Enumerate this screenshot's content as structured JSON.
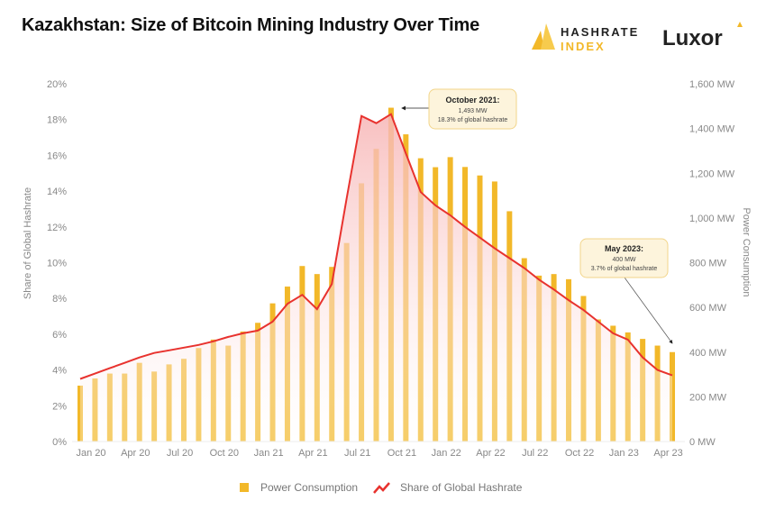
{
  "title": "Kazakhstan: Size of Bitcoin Mining Industry Over Time",
  "logos": {
    "hashrate_index_line1": "HASHRATE",
    "hashrate_index_line2": "INDEX",
    "luxor": "Luxor"
  },
  "colors": {
    "bars": "#F2B829",
    "line": "#E8322E",
    "area": "#F9C8C8",
    "annotation_bg": "#FDF4DC",
    "annotation_border": "#F2D58A"
  },
  "chart_data": {
    "type": "bar+line",
    "title": "Kazakhstan: Size of Bitcoin Mining Industry Over Time",
    "categories": [
      "Jan 20",
      "Feb 20",
      "Mar 20",
      "Apr 20",
      "May 20",
      "Jun 20",
      "Jul 20",
      "Aug 20",
      "Sep 20",
      "Oct 20",
      "Nov 20",
      "Dec 20",
      "Jan 21",
      "Feb 21",
      "Mar 21",
      "Apr 21",
      "May 21",
      "Jun 21",
      "Jul 21",
      "Aug 21",
      "Sep 21",
      "Oct 21",
      "Nov 21",
      "Dec 21",
      "Jan 22",
      "Feb 22",
      "Mar 22",
      "Apr 22",
      "May 22",
      "Jun 22",
      "Jul 22",
      "Aug 22",
      "Sep 22",
      "Oct 22",
      "Nov 22",
      "Dec 22",
      "Jan 23",
      "Feb 23",
      "Mar 23",
      "Apr 23",
      "May 23"
    ],
    "x_tick_labels": [
      "Jan 20",
      "Apr 20",
      "Jul 20",
      "Oct 20",
      "Jan 21",
      "Apr 21",
      "Jul 21",
      "Oct 21",
      "Jan 22",
      "Apr 22",
      "Jul 22",
      "Oct 22",
      "Jan 23",
      "Apr 23"
    ],
    "series": [
      {
        "name": "Power Consumption",
        "type": "bar",
        "axis": "right",
        "unit": "MW",
        "values": [
          250,
          282,
          304,
          304,
          352,
          313,
          345,
          370,
          418,
          456,
          429,
          492,
          531,
          618,
          693,
          785,
          749,
          781,
          888,
          1155,
          1309,
          1493,
          1374,
          1267,
          1227,
          1272,
          1228,
          1190,
          1163,
          1030,
          820,
          742,
          749,
          726,
          651,
          546,
          518,
          488,
          459,
          429,
          400
        ]
      },
      {
        "name": "Share of Global Hashrate",
        "type": "line",
        "axis": "left",
        "unit": "%",
        "values": [
          3.5,
          3.8,
          4.1,
          4.4,
          4.7,
          4.95,
          5.1,
          5.25,
          5.4,
          5.6,
          5.85,
          6.05,
          6.2,
          6.7,
          7.7,
          8.2,
          7.4,
          8.8,
          13.6,
          18.2,
          17.8,
          18.3,
          16.1,
          13.95,
          13.2,
          12.65,
          12.0,
          11.4,
          10.8,
          10.25,
          9.7,
          9.05,
          8.5,
          7.9,
          7.35,
          6.7,
          6.05,
          5.7,
          4.7,
          4.0,
          3.7
        ]
      }
    ],
    "left_axis": {
      "label": "Share of Global Hashrate",
      "ylim": [
        0,
        20
      ],
      "ticks": [
        "0%",
        "2%",
        "4%",
        "6%",
        "8%",
        "10%",
        "12%",
        "14%",
        "16%",
        "18%",
        "20%"
      ]
    },
    "right_axis": {
      "label": "Power Consumption",
      "ylim": [
        0,
        1600
      ],
      "ticks": [
        "0 MW",
        "200 MW",
        "400 MW",
        "600 MW",
        "800 MW",
        "1,000 MW",
        "1,200 MW",
        "1,400 MW",
        "1,600 MW"
      ]
    },
    "grid": false,
    "legend": {
      "placement": "bottom",
      "entries": [
        "Power Consumption",
        "Share of Global Hashrate"
      ]
    },
    "annotations": [
      {
        "target": "Oct 21",
        "title": "October 2021:",
        "line1": "1,493 MW",
        "line2": "18.3% of global hashrate"
      },
      {
        "target": "May 23",
        "title": "May 2023:",
        "line1": "400 MW",
        "line2": "3.7% of global hashrate"
      }
    ]
  }
}
